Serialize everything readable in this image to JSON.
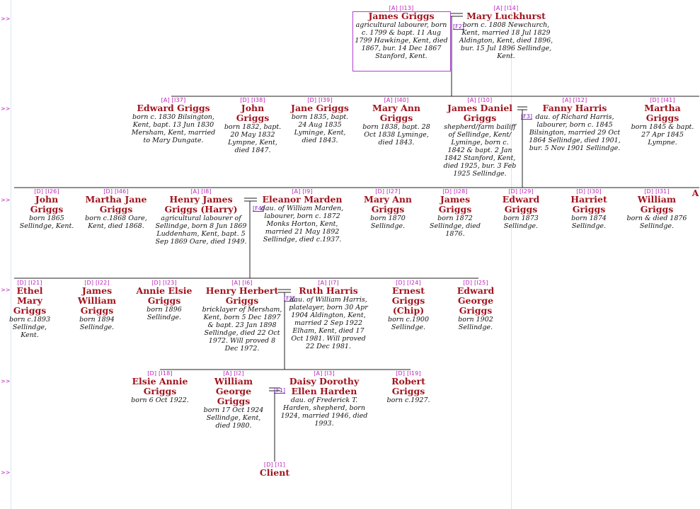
{
  "margin_arrow": ">>",
  "people": [
    {
      "id": "james_griggs_sr",
      "ref": "[A] [I13]",
      "name": "James Griggs",
      "desc": "agricultural labourer, born c. 1799 & bapt. 11 Aug 1799 Hawkinge, Kent, died 1867, bur. 14 Dec 1867 Stanford, Kent.",
      "highlight": true
    },
    {
      "id": "mary_luckhurst",
      "ref": "[A] [I14]",
      "name": "Mary Luckhurst",
      "desc": "born c. 1808 Newchurch, Kent, married 18 Jul 1829 Aldington, Kent, died 1896, bur. 15 Jul 1896 Sellindge, Kent."
    },
    {
      "id": "edward_griggs_1830",
      "ref": "[A] [I37]",
      "name": "Edward Griggs",
      "desc": "born c. 1830 Bilsington, Kent, bapt. 13 Jun 1830 Mersham, Kent, married to Mary Dungate."
    },
    {
      "id": "john_griggs_1832",
      "ref": "[D] [I38]",
      "name": "John Griggs",
      "desc": "born 1832, bapt. 20 May 1832 Lympne, Kent, died 1847."
    },
    {
      "id": "jane_griggs",
      "ref": "[D] [I39]",
      "name": "Jane Griggs",
      "desc": "born 1835, bapt. 24 Aug 1835 Lyminge, Kent, died 1843."
    },
    {
      "id": "mary_ann_griggs_1838",
      "ref": "[A] [I40]",
      "name": "Mary Ann Griggs",
      "desc": "born 1838, bapt. 28 Oct 1838 Lyminge, died 1843."
    },
    {
      "id": "james_daniel_griggs",
      "ref": "[A] [I10]",
      "name": "James Daniel Griggs",
      "desc": "shepherd/farm bailiff of Sellindge, Kent/ Lyminge, born c. 1842 & bapt. 2 Jan 1842 Stanford, Kent, died 1925, bur. 3 Feb 1925 Sellindge."
    },
    {
      "id": "fanny_harris",
      "ref": "[A] [I12]",
      "name": "Fanny Harris",
      "desc": "dau. of Richard Harris, labourer, born c. 1845 Bilsington, married 29 Oct 1864 Sellindge, died 1901, bur. 5 Nov 1901 Sellindge."
    },
    {
      "id": "martha_griggs_1845",
      "ref": "[D] [I41]",
      "name": "Martha Griggs",
      "desc": "born 1845 & bapt. 27 Apr 1845 Lympne."
    },
    {
      "id": "john_griggs_1865",
      "ref": "[D] [I26]",
      "name": "John Griggs",
      "desc": "born 1865 Sellindge, Kent."
    },
    {
      "id": "martha_jane_griggs",
      "ref": "[D] [I46]",
      "name": "Martha Jane Griggs",
      "desc": "born c.1868 Oare, Kent, died 1868."
    },
    {
      "id": "henry_james_griggs",
      "ref": "[A] [I8]",
      "name": "Henry James Griggs (Harry)",
      "desc": "agricultural labourer of Sellindge, born 8 Jun 1869 Luddenham, Kent, bapt. 5 Sep 1869 Oare, died 1949."
    },
    {
      "id": "eleanor_marden",
      "ref": "[A] [I9]",
      "name": "Eleanor Marden",
      "desc": "dau. of William Marden, labourer, born c. 1872 Monks Horton, Kent, married 21 May 1892 Sellindge, died c.1937."
    },
    {
      "id": "mary_ann_griggs_1870",
      "ref": "[D] [I27]",
      "name": "Mary Ann Griggs",
      "desc": "born 1870 Sellindge."
    },
    {
      "id": "james_griggs_1872",
      "ref": "[D] [I28]",
      "name": "James Griggs",
      "desc": "born 1872 Sellindge, died 1876."
    },
    {
      "id": "edward_griggs_1873",
      "ref": "[D] [I29]",
      "name": "Edward Griggs",
      "desc": "born 1873 Sellindge."
    },
    {
      "id": "harriet_griggs",
      "ref": "[D] [I30]",
      "name": "Harriet Griggs",
      "desc": "born 1874 Sellindge."
    },
    {
      "id": "william_griggs",
      "ref": "[D] [I31]",
      "name": "William Griggs",
      "desc": "born & died 1876 Sellindge."
    },
    {
      "id": "cut_a",
      "ref": "",
      "name": "A",
      "desc": ""
    },
    {
      "id": "ethel_mary_griggs",
      "ref": "[D] [I21]",
      "name": "Ethel Mary Griggs",
      "desc": "born c.1893 Sellindge, Kent."
    },
    {
      "id": "james_william_griggs",
      "ref": "[D] [I22]",
      "name": "James William Griggs",
      "desc": "born 1894 Sellindge."
    },
    {
      "id": "annie_elsie_griggs",
      "ref": "[D] [I23]",
      "name": "Annie Elsie Griggs",
      "desc": "born 1896 Sellindge."
    },
    {
      "id": "henry_herbert_griggs",
      "ref": "[A] [I6]",
      "name": "Henry Herbert Griggs",
      "desc": "bricklayer of Mersham, Kent, born 5 Dec 1897 & bapt. 23 Jan 1898 Sellindge, died 22 Oct 1972. Will proved 8 Dec 1972."
    },
    {
      "id": "ruth_harris",
      "ref": "[A] [I7]",
      "name": "Ruth Harris",
      "desc": "dau. of William Harris, platelayer, born 30 Apr 1904 Aldington, Kent, married 2 Sep 1922 Elham, Kent, died 17 Oct 1981. Will proved 22 Dec 1981."
    },
    {
      "id": "ernest_griggs",
      "ref": "[D] [I24]",
      "name": "Ernest Griggs (Chip)",
      "desc": "born c.1900 Sellindge."
    },
    {
      "id": "edward_george_griggs",
      "ref": "[D] [I25]",
      "name": "Edward George Griggs",
      "desc": "born 1902 Sellindge."
    },
    {
      "id": "elsie_annie_griggs",
      "ref": "[D] [I18]",
      "name": "Elsie Annie Griggs",
      "desc": "born 6 Oct 1922."
    },
    {
      "id": "william_george_griggs",
      "ref": "[A] [I2]",
      "name": "William George Griggs",
      "desc": "born 17 Oct 1924 Sellindge, Kent, died 1980."
    },
    {
      "id": "daisy_harden",
      "ref": "[A] [I3]",
      "name": "Daisy Dorothy Ellen Harden",
      "desc": "dau. of Frederick T. Harden, shepherd, born 1924, married 1946, died 1993."
    },
    {
      "id": "robert_griggs",
      "ref": "[D] [I19]",
      "name": "Robert Griggs",
      "desc": "born c.1927."
    },
    {
      "id": "client",
      "ref": "[D] [I1]",
      "name": "Client",
      "desc": ""
    }
  ],
  "family_links": {
    "f2": "[F2]",
    "f3": "[F3]",
    "f4": "[F4]",
    "f5": "[F5]",
    "f1": "[F1]"
  }
}
